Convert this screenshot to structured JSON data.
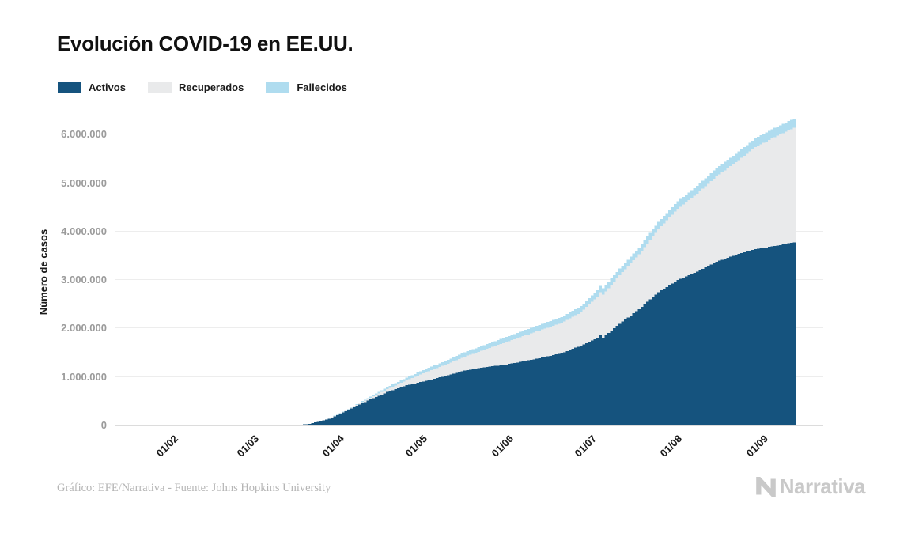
{
  "title": "Evolución COVID-19 en EE.UU.",
  "legend": {
    "items": [
      {
        "label": "Activos",
        "color": "#15537E"
      },
      {
        "label": "Recuperados",
        "color": "#E9EAEB"
      },
      {
        "label": "Fallecidos",
        "color": "#AFDCEF"
      }
    ]
  },
  "footer": {
    "credit": "Gráfico: EFE/Narrativa - Fuente: Johns Hopkins University",
    "brand": "Narrativa",
    "brand_icon": "narrativa-n-logo",
    "brand_color": "#c9c9c9"
  },
  "chart_data": {
    "type": "bar",
    "subtype": "stacked-daily-bars",
    "title": "Evolución COVID-19 en EE.UU.",
    "xlabel": "",
    "ylabel": "Número de casos",
    "ylim": [
      0,
      6330000
    ],
    "grid": "horizontal",
    "legend_position": "top-left",
    "y_tick_labels": [
      "0",
      "1.000.000",
      "2.000.000",
      "3.000.000",
      "4.000.000",
      "5.000.000",
      "6.000.000"
    ],
    "y_tick_values": [
      0,
      1000000,
      2000000,
      3000000,
      4000000,
      5000000,
      6000000
    ],
    "x_ticks": [
      {
        "label": "01/02",
        "day": 10
      },
      {
        "label": "01/03",
        "day": 39
      },
      {
        "label": "01/04",
        "day": 70
      },
      {
        "label": "01/05",
        "day": 100
      },
      {
        "label": "01/06",
        "day": 131
      },
      {
        "label": "01/07",
        "day": 161
      },
      {
        "label": "01/08",
        "day": 192
      },
      {
        "label": "01/09",
        "day": 223
      }
    ],
    "x_start_date": "22/01",
    "x_end_date": "13/09",
    "series_order_bottom_to_top": [
      "Activos",
      "Recuperados",
      "Fallecidos"
    ],
    "series_colors": {
      "Activos": "#15537E",
      "Recuperados": "#E9EAEB",
      "Fallecidos": "#AFDCEF"
    },
    "points": [
      {
        "date": "22/01",
        "day": 0,
        "activos": 1,
        "recuperados": 0,
        "fallecidos": 0
      },
      {
        "date": "01/02",
        "day": 10,
        "activos": 8,
        "recuperados": 0,
        "fallecidos": 0
      },
      {
        "date": "15/02",
        "day": 24,
        "activos": 13,
        "recuperados": 1,
        "fallecidos": 0
      },
      {
        "date": "01/03",
        "day": 39,
        "activos": 70,
        "recuperados": 7,
        "fallecidos": 1
      },
      {
        "date": "08/03",
        "day": 46,
        "activos": 500,
        "recuperados": 8,
        "fallecidos": 19
      },
      {
        "date": "15/03",
        "day": 53,
        "activos": 3300,
        "recuperados": 56,
        "fallecidos": 63
      },
      {
        "date": "22/03",
        "day": 60,
        "activos": 32000,
        "recuperados": 200,
        "fallecidos": 420
      },
      {
        "date": "29/03",
        "day": 67,
        "activos": 135000,
        "recuperados": 4600,
        "fallecidos": 2500
      },
      {
        "date": "05/04",
        "day": 74,
        "activos": 320000,
        "recuperados": 17000,
        "fallecidos": 9600
      },
      {
        "date": "12/04",
        "day": 81,
        "activos": 510000,
        "recuperados": 32000,
        "fallecidos": 22000
      },
      {
        "date": "19/04",
        "day": 88,
        "activos": 690000,
        "recuperados": 59000,
        "fallecidos": 40000
      },
      {
        "date": "26/04",
        "day": 95,
        "activos": 830000,
        "recuperados": 100000,
        "fallecidos": 54000
      },
      {
        "date": "03/05",
        "day": 102,
        "activos": 920000,
        "recuperados": 180000,
        "fallecidos": 68000
      },
      {
        "date": "10/05",
        "day": 109,
        "activos": 1020000,
        "recuperados": 230000,
        "fallecidos": 79000
      },
      {
        "date": "17/05",
        "day": 116,
        "activos": 1130000,
        "recuperados": 290000,
        "fallecidos": 89000
      },
      {
        "date": "24/05",
        "day": 123,
        "activos": 1200000,
        "recuperados": 360000,
        "fallecidos": 98000
      },
      {
        "date": "31/05",
        "day": 130,
        "activos": 1250000,
        "recuperados": 450000,
        "fallecidos": 104000
      },
      {
        "date": "07/06",
        "day": 137,
        "activos": 1320000,
        "recuperados": 520000,
        "fallecidos": 110000
      },
      {
        "date": "14/06",
        "day": 144,
        "activos": 1400000,
        "recuperados": 580000,
        "fallecidos": 115000
      },
      {
        "date": "21/06",
        "day": 151,
        "activos": 1490000,
        "recuperados": 625000,
        "fallecidos": 120000
      },
      {
        "date": "28/06",
        "day": 158,
        "activos": 1650000,
        "recuperados": 685000,
        "fallecidos": 125000
      },
      {
        "date": "04/07",
        "day": 164,
        "activos": 1800000,
        "recuperados": 860000,
        "fallecidos": 129500
      },
      {
        "date": "05/07",
        "day": 165,
        "activos": 1880000,
        "recuperados": 870000,
        "fallecidos": 130000
      },
      {
        "date": "06/07",
        "day": 166,
        "activos": 1810000,
        "recuperados": 890000,
        "fallecidos": 130200
      },
      {
        "date": "12/07",
        "day": 172,
        "activos": 2100000,
        "recuperados": 1000000,
        "fallecidos": 135000
      },
      {
        "date": "19/07",
        "day": 179,
        "activos": 2400000,
        "recuperados": 1130000,
        "fallecidos": 140000
      },
      {
        "date": "26/07",
        "day": 186,
        "activos": 2750000,
        "recuperados": 1300000,
        "fallecidos": 147000
      },
      {
        "date": "02/08",
        "day": 193,
        "activos": 3000000,
        "recuperados": 1470000,
        "fallecidos": 155000
      },
      {
        "date": "09/08",
        "day": 200,
        "activos": 3170000,
        "recuperados": 1610000,
        "fallecidos": 162000
      },
      {
        "date": "16/08",
        "day": 207,
        "activos": 3380000,
        "recuperados": 1760000,
        "fallecidos": 170000
      },
      {
        "date": "23/08",
        "day": 214,
        "activos": 3520000,
        "recuperados": 1910000,
        "fallecidos": 176000
      },
      {
        "date": "30/08",
        "day": 221,
        "activos": 3640000,
        "recuperados": 2100000,
        "fallecidos": 182000
      },
      {
        "date": "06/09",
        "day": 228,
        "activos": 3700000,
        "recuperados": 2250000,
        "fallecidos": 188000
      },
      {
        "date": "13/09",
        "day": 235,
        "activos": 3780000,
        "recuperados": 2360000,
        "fallecidos": 194000
      }
    ]
  }
}
